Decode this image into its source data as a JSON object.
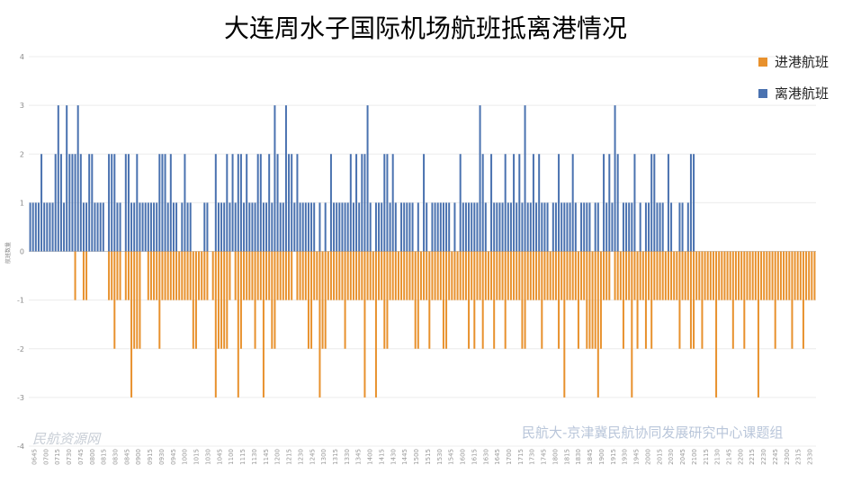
{
  "chart_data": {
    "type": "bar",
    "title": "大连周水子国际机场航班抵离港情况",
    "ylabel": "航班数量",
    "xlabel": "",
    "ylim": [
      -4,
      4
    ],
    "yticks": [
      4,
      3,
      2,
      1,
      0,
      -1,
      -2,
      -3,
      -4
    ],
    "grid": true,
    "legend_position": "top-right",
    "x_tick_labels": [
      "0645",
      "0700",
      "0715",
      "0730",
      "0745",
      "0800",
      "0815",
      "0830",
      "0845",
      "0900",
      "0915",
      "0930",
      "0945",
      "1000",
      "1015",
      "1030",
      "1045",
      "1100",
      "1115",
      "1130",
      "1145",
      "1200",
      "1215",
      "1230",
      "1245",
      "1300",
      "1315",
      "1330",
      "1345",
      "1400",
      "1415",
      "1430",
      "1445",
      "1500",
      "1515",
      "1530",
      "1545",
      "1600",
      "1615",
      "1630",
      "1645",
      "1700",
      "1715",
      "1730",
      "1745",
      "1800",
      "1815",
      "1830",
      "1845",
      "1900",
      "1915",
      "1930",
      "1945",
      "2000",
      "2015",
      "2030",
      "2045",
      "2100",
      "2115",
      "2130",
      "2145",
      "2200",
      "2215",
      "2230",
      "2245",
      "2300",
      "2315",
      "2330"
    ],
    "series": [
      {
        "name": "进港航班",
        "color": "#E8912D",
        "values": [
          0,
          0,
          0,
          0,
          0,
          0,
          0,
          0,
          0,
          0,
          0,
          0,
          0,
          0,
          0,
          0,
          -1,
          0,
          0,
          -1,
          -1,
          0,
          0,
          0,
          0,
          0,
          0,
          0,
          -1,
          -1,
          -2,
          -1,
          -1,
          0,
          -1,
          -1,
          -3,
          -2,
          -2,
          -2,
          0,
          0,
          -1,
          -1,
          -1,
          -1,
          -2,
          -1,
          -1,
          -1,
          -1,
          -1,
          -1,
          -1,
          -1,
          -1,
          -1,
          -1,
          -2,
          -2,
          -1,
          -1,
          -1,
          -1,
          0,
          -1,
          -3,
          -2,
          -2,
          -2,
          -2,
          -1,
          0,
          -1,
          -3,
          -2,
          -1,
          -1,
          -1,
          -1,
          -2,
          -1,
          -1,
          -3,
          -1,
          -1,
          -2,
          -2,
          -1,
          -1,
          -1,
          -1,
          -1,
          -1,
          0,
          -1,
          -1,
          -1,
          -1,
          -2,
          -2,
          -1,
          -1,
          -3,
          -2,
          -2,
          -1,
          -1,
          -1,
          -1,
          -1,
          -1,
          -2,
          -1,
          -1,
          -1,
          -1,
          -1,
          -1,
          -3,
          -1,
          -1,
          -1,
          -3,
          -1,
          -1,
          -2,
          -2,
          -1,
          -1,
          -1,
          -1,
          -1,
          -1,
          -1,
          -1,
          -1,
          -2,
          -2,
          -1,
          -1,
          -1,
          -2,
          -1,
          -1,
          -1,
          -1,
          -2,
          -2,
          -1,
          -1,
          -1,
          -1,
          -1,
          -1,
          -1,
          -2,
          -1,
          -2,
          -1,
          -1,
          -2,
          -1,
          -1,
          -1,
          -2,
          -1,
          -1,
          -1,
          -2,
          -1,
          -1,
          -1,
          -1,
          -1,
          -2,
          -2,
          -1,
          -1,
          -1,
          -1,
          -1,
          -2,
          -1,
          -1,
          -1,
          -1,
          -1,
          -2,
          -1,
          -3,
          -1,
          -1,
          -1,
          -1,
          -2,
          -1,
          -1,
          -2,
          -2,
          -2,
          -2,
          -3,
          -2,
          -1,
          -1,
          -1,
          0,
          -1,
          -1,
          -1,
          -2,
          -1,
          -1,
          -3,
          -1,
          -2,
          -1,
          -1,
          -2,
          -1,
          -2,
          -1,
          -1,
          -1,
          -1,
          -1,
          -1,
          -1,
          -1,
          -1,
          -2,
          -1,
          -1,
          -1,
          -2,
          -2,
          -1,
          -1,
          -2,
          -1,
          -1,
          -1,
          -1,
          -3,
          -1,
          -1,
          -1,
          -1,
          -1,
          -2,
          -1,
          -1,
          -1,
          -2,
          -1,
          -1,
          -1,
          -1,
          -3,
          -1,
          -1,
          -1,
          -1,
          -1,
          -2,
          -1,
          -1,
          -1,
          -1,
          -1,
          -2,
          -1,
          -1,
          -1,
          -2,
          -1,
          -1,
          -1,
          -1
        ]
      },
      {
        "name": "离港航班",
        "color": "#4A72B0",
        "values": [
          1,
          1,
          1,
          1,
          2,
          1,
          1,
          1,
          1,
          2,
          3,
          2,
          1,
          3,
          2,
          2,
          2,
          3,
          2,
          1,
          1,
          2,
          2,
          1,
          1,
          1,
          1,
          0,
          2,
          2,
          2,
          1,
          1,
          0,
          2,
          2,
          1,
          1,
          2,
          1,
          1,
          1,
          1,
          1,
          1,
          1,
          2,
          2,
          2,
          1,
          2,
          1,
          1,
          0,
          1,
          2,
          1,
          1,
          0,
          0,
          0,
          0,
          1,
          1,
          0,
          0,
          2,
          1,
          1,
          1,
          2,
          1,
          2,
          1,
          2,
          2,
          1,
          2,
          1,
          1,
          1,
          2,
          2,
          1,
          1,
          2,
          1,
          3,
          2,
          1,
          1,
          3,
          2,
          2,
          1,
          2,
          1,
          1,
          1,
          1,
          1,
          1,
          0,
          1,
          0,
          1,
          0,
          2,
          1,
          1,
          1,
          1,
          1,
          1,
          2,
          1,
          2,
          1,
          2,
          2,
          3,
          1,
          0,
          1,
          1,
          1,
          2,
          2,
          1,
          2,
          1,
          0,
          1,
          1,
          1,
          1,
          1,
          0,
          1,
          0,
          2,
          1,
          0,
          1,
          1,
          1,
          1,
          1,
          1,
          1,
          0,
          1,
          0,
          2,
          1,
          1,
          1,
          1,
          1,
          1,
          3,
          2,
          1,
          0,
          2,
          1,
          1,
          1,
          1,
          2,
          1,
          1,
          2,
          1,
          2,
          1,
          3,
          1,
          1,
          2,
          1,
          2,
          1,
          1,
          1,
          0,
          1,
          1,
          2,
          1,
          1,
          1,
          1,
          2,
          1,
          0,
          1,
          1,
          1,
          1,
          0,
          1,
          1,
          0,
          2,
          1,
          2,
          1,
          3,
          2,
          0,
          1,
          1,
          1,
          1,
          2,
          0,
          1,
          0,
          1,
          1,
          2,
          2,
          1,
          1,
          1,
          0,
          2,
          1,
          0,
          0,
          1,
          1,
          0,
          1,
          2,
          2,
          0,
          0,
          0,
          0,
          0,
          0,
          0,
          0,
          0,
          0,
          0,
          0,
          0,
          0,
          0,
          0,
          0,
          0,
          0,
          0,
          0,
          0,
          0,
          0,
          0,
          0,
          0,
          0,
          0,
          0,
          0,
          0,
          0,
          0,
          0
        ]
      }
    ]
  },
  "watermarks": {
    "left": "民航资源网",
    "right": "民航大-京津冀民航协同发展研究中心课题组"
  }
}
